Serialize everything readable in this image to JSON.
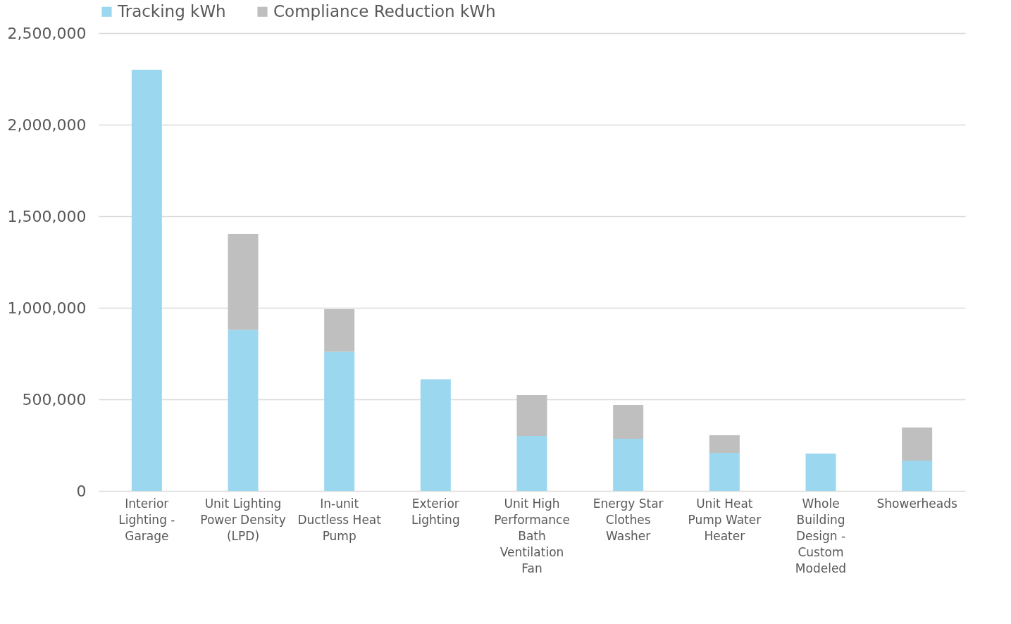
{
  "chart_data": {
    "type": "bar",
    "stacked": true,
    "categories": [
      "Interior Lighting - Garage",
      "Unit Lighting Power Density (LPD)",
      "In-unit Ductless Heat Pump",
      "Exterior Lighting",
      "Unit High Performance Bath Ventilation Fan",
      "Energy Star Clothes Washer",
      "Unit Heat Pump Water Heater",
      "Whole Building Design - Custom Modeled",
      "Showerheads"
    ],
    "series": [
      {
        "name": "Tracking kWh",
        "color": "#9bd7ef",
        "values": [
          2300000,
          880000,
          760000,
          610000,
          300000,
          285000,
          208000,
          204000,
          165000
        ]
      },
      {
        "name": "Compliance Reduction kWh",
        "color": "#bfbfbf",
        "values": [
          null,
          524000,
          232000,
          null,
          223000,
          184000,
          96000,
          null,
          181000
        ]
      }
    ],
    "ylim": [
      0,
      2500000
    ],
    "yticks": [
      {
        "value": 0,
        "label": "0"
      },
      {
        "value": 500000,
        "label": "500,000"
      },
      {
        "value": 1000000,
        "label": "1,000,000"
      },
      {
        "value": 1500000,
        "label": "1,500,000"
      },
      {
        "value": 2000000,
        "label": "2,000,000"
      },
      {
        "value": 2500000,
        "label": "2,500,000"
      }
    ],
    "grid": "y",
    "legend": "top"
  }
}
